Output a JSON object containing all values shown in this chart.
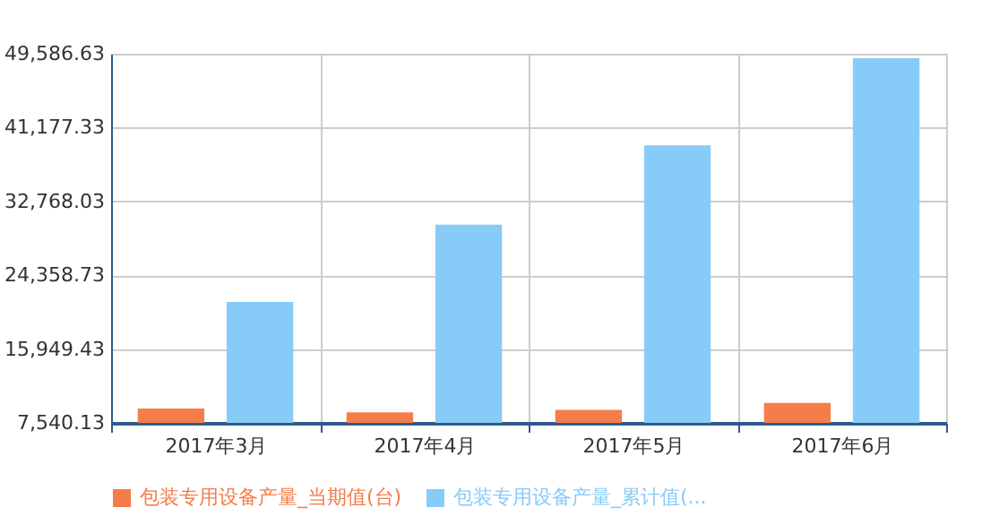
{
  "chart_data": {
    "type": "bar",
    "categories": [
      "2017年3月",
      "2017年4月",
      "2017年5月",
      "2017年6月"
    ],
    "series": [
      {
        "name": "包装专用设备产量_当期值(台)",
        "color": "#f47d4a",
        "values": [
          9170,
          8750,
          9030,
          9810
        ]
      },
      {
        "name": "包装专用设备产量_累计值(...",
        "color": "#87cbf8",
        "values": [
          21320,
          30120,
          39140,
          49080
        ]
      }
    ],
    "ylim": [
      7540.13,
      49586.63
    ],
    "yticks": [
      {
        "value": 7540.13,
        "label": "7,540.13"
      },
      {
        "value": 15949.43,
        "label": "15,949.43"
      },
      {
        "value": 24358.73,
        "label": "24,358.73"
      },
      {
        "value": 32768.03,
        "label": "32,768.03"
      },
      {
        "value": 41177.33,
        "label": "41,177.33"
      },
      {
        "value": 49586.63,
        "label": "49,586.63"
      }
    ],
    "grid": true,
    "legend": "bottom"
  }
}
